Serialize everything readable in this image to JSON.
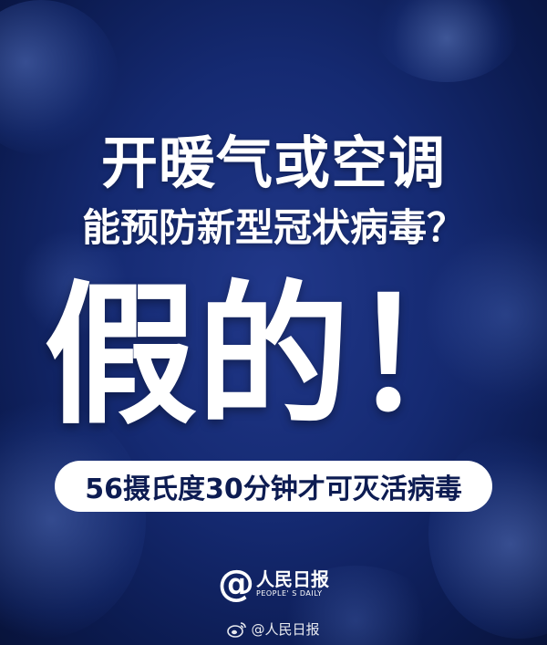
{
  "headline": {
    "line1": "开暖气或空调",
    "line2": "能预防新型冠状病毒？",
    "verdict": "假的！"
  },
  "fact_pill": {
    "text": "56摄氏度30分钟才可灭活病毒"
  },
  "logo": {
    "chinese": "人民日报",
    "english": "PEOPLE' S DAILY",
    "at": "@"
  },
  "watermark": {
    "text": "@人民日报",
    "icon": "weibo-icon"
  },
  "colors": {
    "background": "#152a72",
    "text": "#ffffff",
    "pill_text": "#0d1c52"
  }
}
